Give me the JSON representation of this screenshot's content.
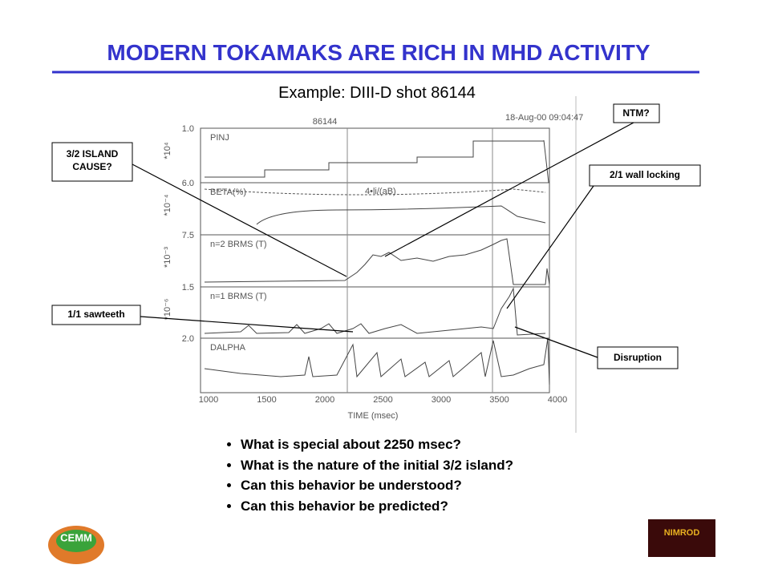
{
  "header": {
    "title": "MODERN TOKAMAKS ARE RICH IN MHD ACTIVITY",
    "subtitle": "Example: DIII-D shot 86144"
  },
  "figure": {
    "shot": "86144",
    "timestamp": "18-Aug-00 09:04:47",
    "panels": [
      {
        "label": "PINJ",
        "tick": "1.0",
        "exponent": "*10⁴"
      },
      {
        "label": "BETA(%)",
        "tick": "6.0",
        "exponent": "*10⁻⁴",
        "extra": "4•li/(aB)"
      },
      {
        "label": "n=2 BRMS (T)",
        "tick": "7.5",
        "exponent": "*10⁻³"
      },
      {
        "label": "n=1 BRMS (T)",
        "tick": "1.5",
        "exponent": "*10⁻⁶"
      },
      {
        "label": "DALPHA",
        "tick": "2.0"
      }
    ],
    "xticks": [
      "1000",
      "1500",
      "2000",
      "2500",
      "3000",
      "3500",
      "4000"
    ],
    "xlabel": "TIME (msec)"
  },
  "callouts": [
    "3/2 ISLAND CAUSE?",
    "NTM?",
    "2/1 wall locking",
    "1/1 sawteeth",
    "Disruption"
  ],
  "bullets": [
    "What is special about 2250 msec?",
    "What is the nature of the initial 3/2 island?",
    "Can this behavior be understood?",
    "Can this behavior be predicted?"
  ],
  "logos": [
    "CEMM",
    "NIMROD"
  ]
}
